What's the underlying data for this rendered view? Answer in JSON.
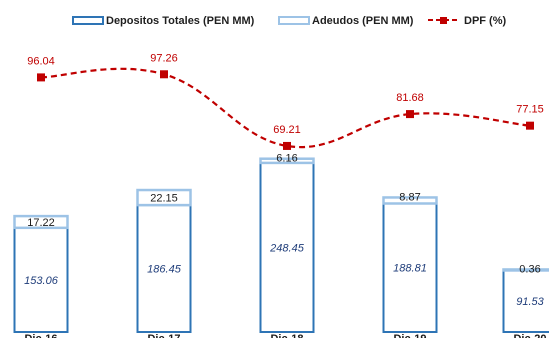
{
  "chart_data": {
    "type": "bar",
    "categories": [
      "Dic-16",
      "Dic-17",
      "Dic-18",
      "Dic-19",
      "Dic-20"
    ],
    "series": [
      {
        "name": "Depositos Totales (PEN MM)",
        "kind": "bar-stacked-base",
        "values": [
          153.06,
          186.45,
          248.45,
          188.81,
          91.53
        ],
        "color": "#2e74b5"
      },
      {
        "name": "Adeudos (PEN MM)",
        "kind": "bar-stacked-top",
        "values": [
          17.22,
          22.15,
          6.16,
          8.87,
          0.36
        ],
        "color": "#9dc3e6"
      },
      {
        "name": "DPF (%)",
        "kind": "line",
        "values": [
          96.04,
          97.26,
          69.21,
          81.68,
          77.15
        ],
        "color": "#c00000"
      }
    ],
    "legend_position": "top",
    "grid": false
  }
}
